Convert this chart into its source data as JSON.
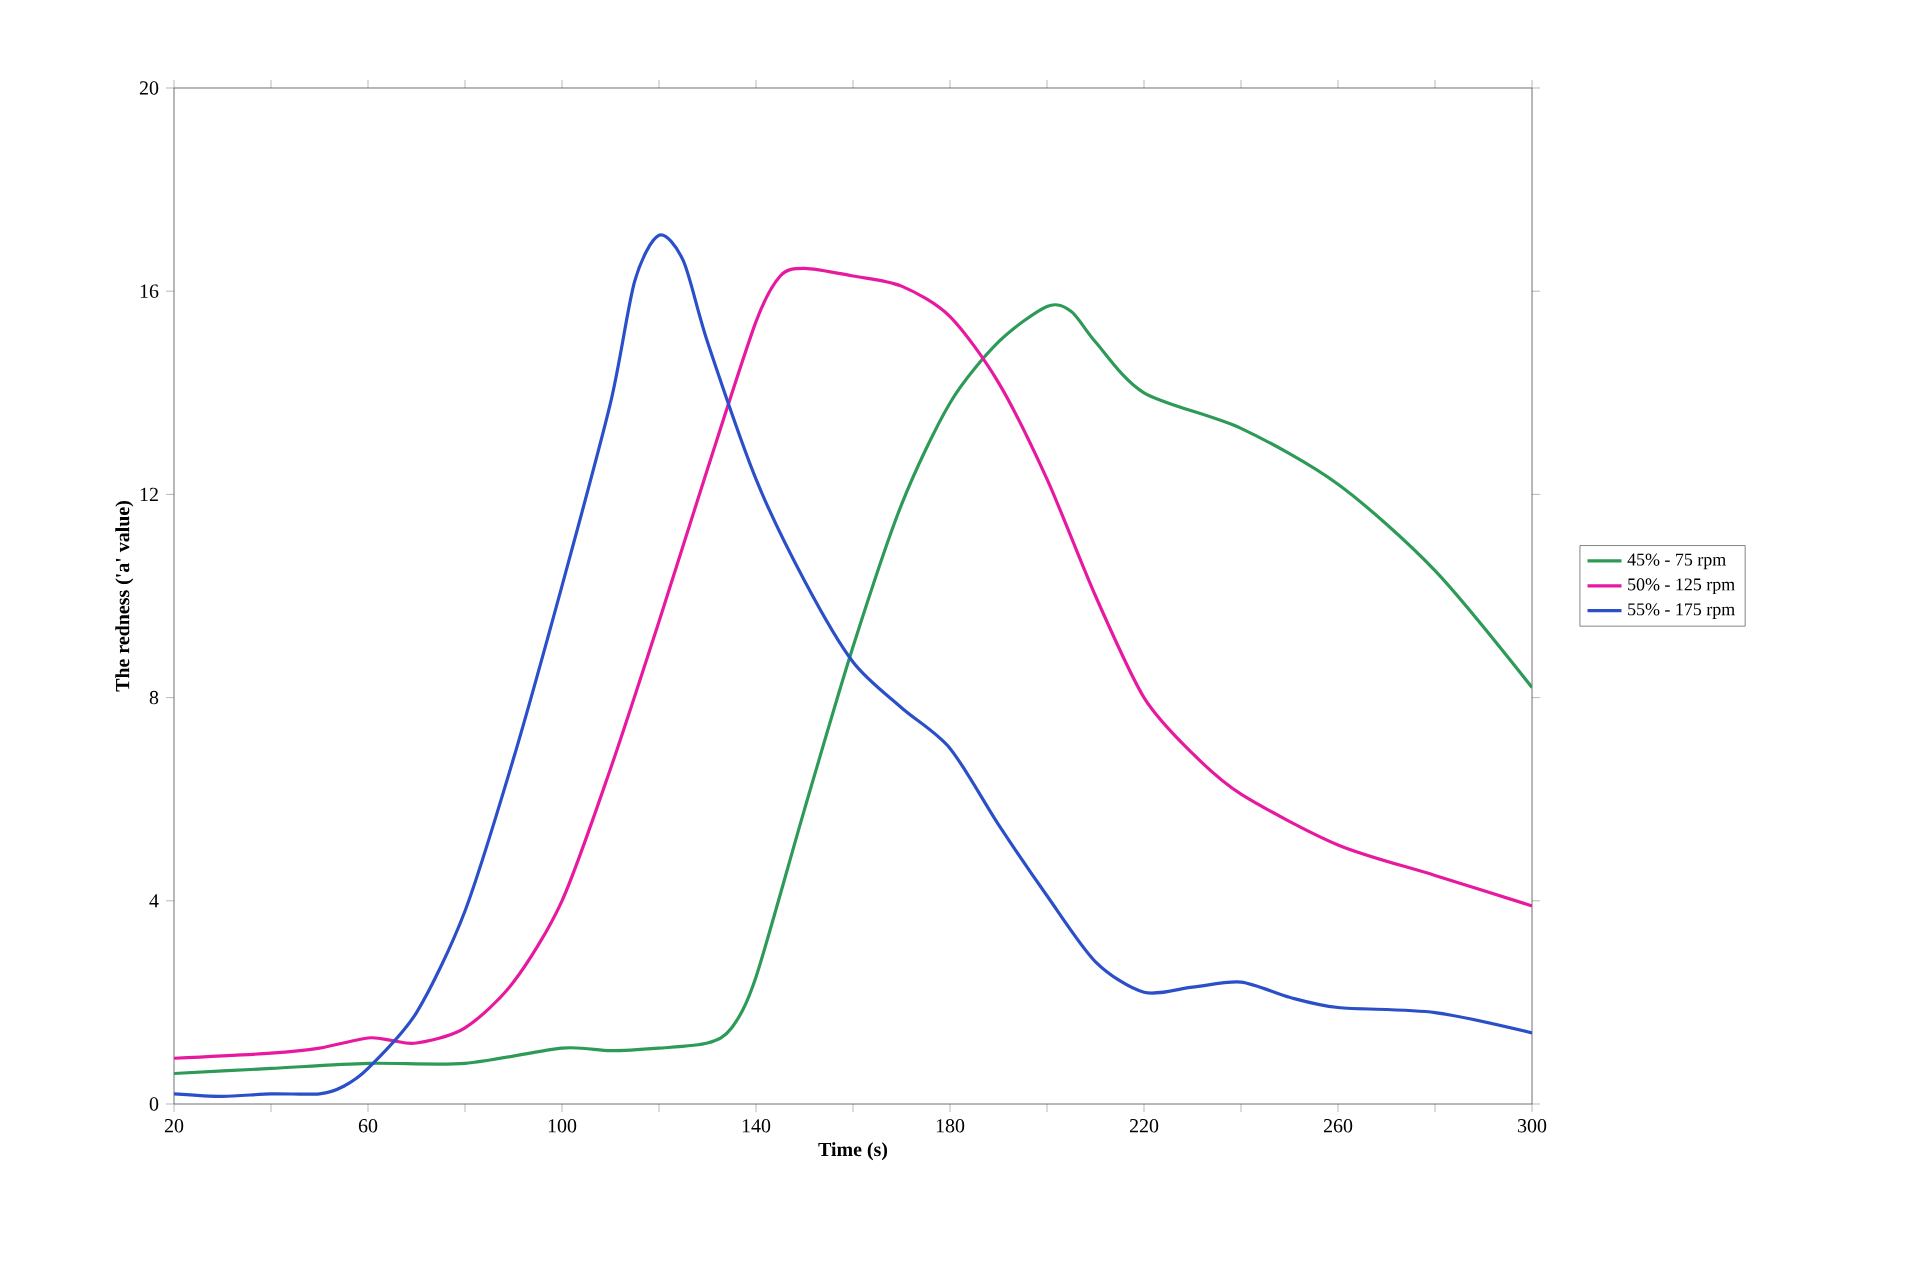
{
  "chart_data": {
    "type": "line",
    "xlabel": "Time (s)",
    "ylabel": "The redness ('a' value)",
    "xlim": [
      20,
      300
    ],
    "ylim": [
      0,
      20
    ],
    "xticks": [
      20,
      {
        "value": 40,
        "label": null
      },
      60,
      {
        "value": 80,
        "label": null
      },
      100,
      {
        "value": 120,
        "label": null
      },
      140,
      {
        "value": 160,
        "label": null
      },
      180,
      {
        "value": 200,
        "label": null
      },
      220,
      {
        "value": 240,
        "label": null
      },
      260,
      {
        "value": 280,
        "label": null
      },
      300
    ],
    "yticks": [
      0,
      4,
      8,
      12,
      16,
      20
    ],
    "grid": false,
    "legend": "right",
    "marker": "none",
    "line_style": "solid",
    "series": [
      {
        "name": "45% - 75 rpm",
        "color": "#2e9a57",
        "x": [
          20,
          40,
          60,
          80,
          100,
          110,
          120,
          130,
          135,
          140,
          150,
          160,
          170,
          180,
          190,
          200,
          205,
          210,
          220,
          240,
          260,
          280,
          300
        ],
        "values": [
          0.6,
          0.7,
          0.8,
          0.8,
          1.1,
          1.05,
          1.1,
          1.2,
          1.5,
          2.5,
          5.8,
          9.0,
          11.8,
          13.8,
          15.0,
          15.7,
          15.6,
          15.0,
          14.0,
          13.3,
          12.2,
          10.5,
          8.2
        ]
      },
      {
        "name": "50% - 125 rpm",
        "color": "#e6199f",
        "x": [
          20,
          40,
          50,
          60,
          65,
          70,
          80,
          90,
          100,
          110,
          120,
          130,
          140,
          145,
          150,
          160,
          170,
          180,
          190,
          200,
          210,
          220,
          230,
          240,
          260,
          280,
          300
        ],
        "values": [
          0.9,
          1.0,
          1.1,
          1.3,
          1.25,
          1.2,
          1.5,
          2.4,
          4.0,
          6.6,
          9.5,
          12.5,
          15.4,
          16.3,
          16.45,
          16.3,
          16.1,
          15.5,
          14.2,
          12.3,
          10.0,
          8.0,
          6.9,
          6.1,
          5.1,
          4.5,
          3.9
        ]
      },
      {
        "name": "55% - 175 rpm",
        "color": "#2a4fc9",
        "x": [
          20,
          30,
          40,
          50,
          55,
          60,
          70,
          80,
          90,
          100,
          110,
          115,
          120,
          125,
          130,
          140,
          150,
          160,
          170,
          180,
          190,
          200,
          210,
          220,
          230,
          240,
          250,
          260,
          280,
          300
        ],
        "values": [
          0.2,
          0.15,
          0.2,
          0.2,
          0.35,
          0.7,
          1.8,
          3.8,
          6.8,
          10.2,
          13.8,
          16.2,
          17.1,
          16.6,
          15.0,
          12.3,
          10.3,
          8.7,
          7.8,
          7.0,
          5.5,
          4.1,
          2.8,
          2.2,
          2.3,
          2.4,
          2.1,
          1.9,
          1.8,
          1.4
        ]
      }
    ]
  }
}
